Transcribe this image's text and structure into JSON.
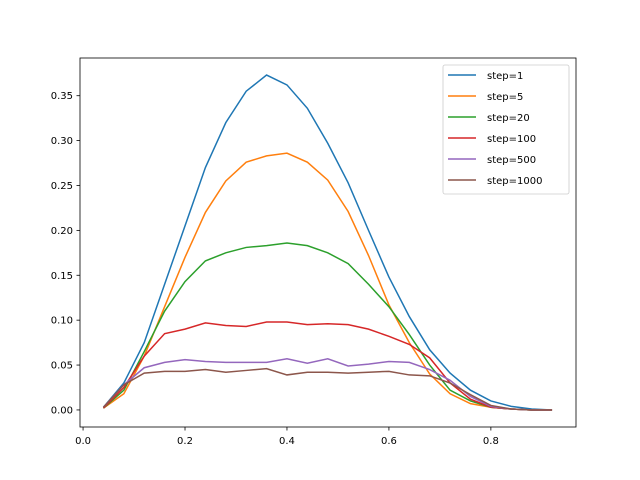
{
  "chart_data": {
    "type": "line",
    "title": "",
    "xlabel": "",
    "ylabel": "",
    "xlim": [
      -0.006,
      0.967
    ],
    "ylim": [
      -0.019,
      0.392
    ],
    "xticks": [
      "0.0",
      "0.2",
      "0.4",
      "0.6",
      "0.8"
    ],
    "xtick_values": [
      0,
      0.2,
      0.4,
      0.6,
      0.8
    ],
    "yticks": [
      "0.00",
      "0.05",
      "0.10",
      "0.15",
      "0.20",
      "0.25",
      "0.30",
      "0.35"
    ],
    "ytick_values": [
      0,
      0.05,
      0.1,
      0.15,
      0.2,
      0.25,
      0.3,
      0.35
    ],
    "legend_position": "top-right",
    "grid": false,
    "x": [
      0.04,
      0.08,
      0.12,
      0.16,
      0.2,
      0.24,
      0.28,
      0.32,
      0.36,
      0.4,
      0.44,
      0.48,
      0.52,
      0.56,
      0.6,
      0.64,
      0.68,
      0.72,
      0.76,
      0.8,
      0.84,
      0.88,
      0.92
    ],
    "series": [
      {
        "name": "step=1",
        "color": "#1f77b4",
        "values": [
          0.003,
          0.03,
          0.075,
          0.14,
          0.205,
          0.27,
          0.32,
          0.355,
          0.373,
          0.362,
          0.336,
          0.297,
          0.253,
          0.2,
          0.148,
          0.104,
          0.067,
          0.041,
          0.022,
          0.01,
          0.004,
          0.001,
          0.0
        ]
      },
      {
        "name": "step=5",
        "color": "#ff7f0e",
        "values": [
          0.002,
          0.018,
          0.06,
          0.115,
          0.17,
          0.22,
          0.255,
          0.276,
          0.283,
          0.286,
          0.276,
          0.256,
          0.221,
          0.172,
          0.117,
          0.075,
          0.04,
          0.018,
          0.007,
          0.003,
          0.001,
          0,
          0
        ]
      },
      {
        "name": "step=20",
        "color": "#2ca02c",
        "values": [
          0.002,
          0.022,
          0.065,
          0.11,
          0.143,
          0.166,
          0.175,
          0.181,
          0.183,
          0.186,
          0.183,
          0.175,
          0.163,
          0.14,
          0.115,
          0.084,
          0.05,
          0.022,
          0.01,
          0.003,
          0.001,
          0,
          0
        ]
      },
      {
        "name": "step=100",
        "color": "#d62728",
        "values": [
          0.002,
          0.025,
          0.06,
          0.085,
          0.09,
          0.097,
          0.094,
          0.093,
          0.098,
          0.098,
          0.095,
          0.096,
          0.095,
          0.09,
          0.082,
          0.073,
          0.058,
          0.03,
          0.012,
          0.003,
          0.001,
          0,
          0
        ]
      },
      {
        "name": "step=500",
        "color": "#9467bd",
        "values": [
          0.003,
          0.028,
          0.047,
          0.053,
          0.056,
          0.054,
          0.053,
          0.053,
          0.053,
          0.057,
          0.052,
          0.057,
          0.049,
          0.051,
          0.054,
          0.053,
          0.045,
          0.033,
          0.015,
          0.004,
          0.001,
          0,
          0
        ]
      },
      {
        "name": "step=1000",
        "color": "#8c564b",
        "values": [
          0.003,
          0.028,
          0.041,
          0.043,
          0.043,
          0.045,
          0.042,
          0.044,
          0.046,
          0.039,
          0.042,
          0.042,
          0.041,
          0.042,
          0.043,
          0.039,
          0.038,
          0.03,
          0.017,
          0.005,
          0.001,
          0,
          0
        ]
      }
    ]
  }
}
